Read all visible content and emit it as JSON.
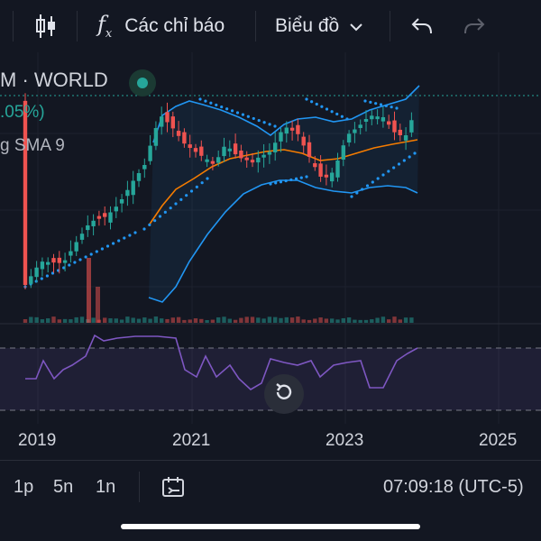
{
  "toolbar": {
    "indicators_label": "Các chỉ báo",
    "chart_type_label": "Biểu đồ",
    "icons": [
      "candles-icon",
      "fx-icon",
      "chevron-down-icon",
      "undo-icon",
      "redo-icon"
    ]
  },
  "legend": {
    "symbol": "M · WORLD",
    "change": ".05%)",
    "indicator": "g SMA 9"
  },
  "time_axis": {
    "ticks": [
      "2019",
      "2021",
      "2023",
      "2025"
    ]
  },
  "bottom_bar": {
    "intervals": [
      "1p",
      "5n",
      "1n"
    ],
    "clock": "07:09:18 (UTC-5)"
  },
  "colors": {
    "background": "#131722",
    "up": "#26a69a",
    "down": "#ef5350",
    "band": "#2196f3",
    "sma": "#f57c00",
    "rsi": "#7e57c2"
  }
}
